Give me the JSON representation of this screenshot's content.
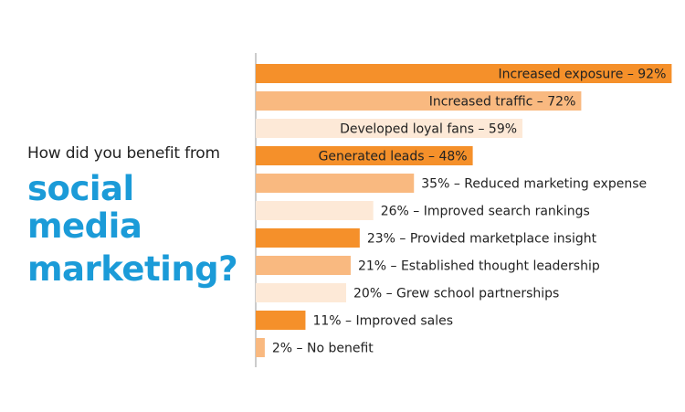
{
  "heading": {
    "lead": "How did you benefit from",
    "line1": "social media",
    "line2": "marketing?",
    "accent_color": "#1b9bd8"
  },
  "chart_data": {
    "type": "bar",
    "orientation": "horizontal",
    "grid": false,
    "xlim": [
      0,
      100
    ],
    "colors": [
      "#f5902a",
      "#f9b980",
      "#fde9d7"
    ],
    "bars": [
      {
        "value": 92,
        "label": "Increased exposure – 92%"
      },
      {
        "value": 72,
        "label": "Increased traffic – 72%"
      },
      {
        "value": 59,
        "label": "Developed loyal fans – 59%"
      },
      {
        "value": 48,
        "label": "Generated leads – 48%"
      },
      {
        "value": 35,
        "label": "35% – Reduced marketing expense"
      },
      {
        "value": 26,
        "label": "26% – Improved search rankings"
      },
      {
        "value": 23,
        "label": "23% – Provided marketplace insight"
      },
      {
        "value": 21,
        "label": "21% – Established thought leadership"
      },
      {
        "value": 20,
        "label": "20% – Grew school partnerships"
      },
      {
        "value": 11,
        "label": "11% – Improved sales"
      },
      {
        "value": 2,
        "label": "2% – No benefit"
      }
    ]
  }
}
